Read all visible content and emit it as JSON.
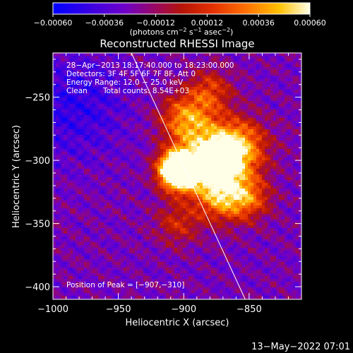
{
  "chart_data": {
    "type": "heatmap",
    "title": "Reconstructed RHESSI Image",
    "xlabel": "Heliocentric X (arcsec)",
    "ylabel": "Heliocentric Y (arcsec)",
    "xlim": [
      -1000,
      -810
    ],
    "ylim": [
      -410,
      -215
    ],
    "x_ticks": [
      -1000,
      -950,
      -900,
      -850
    ],
    "y_ticks": [
      -250,
      -300,
      -350,
      -400
    ],
    "x_tick_labels": [
      "−1000",
      "−950",
      "−900",
      "−850"
    ],
    "y_tick_labels": [
      "−250",
      "−300",
      "−350",
      "−400"
    ],
    "colorbar": {
      "min": -0.0006,
      "max": 0.0006,
      "ticks": [
        -0.0006,
        -0.00036,
        -0.00012,
        0.00012,
        0.00036,
        0.0006
      ],
      "tick_labels": [
        "−0.00060",
        "−0.00036",
        "−0.00012",
        "0.00012",
        "0.00036",
        "0.00060"
      ],
      "unit_prefix": "(photons cm",
      "unit_exp1": "−2",
      "unit_mid": " s",
      "unit_exp2": "−1",
      "unit_mid2": " asec",
      "unit_exp3": "−2",
      "unit_suffix": ")"
    },
    "annotations": {
      "time_range": "28−Apr−2013 18:17:40.000 to 18:23:00.000",
      "detectors": "Detectors: 3F 4F 5F 6F 7F 8F, Att 0",
      "energy_range": "Energy Range: 12.0 − 25.0 keV",
      "method_label": "Clean",
      "total_counts": "Total counts: 8.54E+03",
      "peak_position": "Position of Peak = [−907,−310]"
    },
    "peak": {
      "x": -907,
      "y": -310
    },
    "limb_line": [
      {
        "x": -940,
        "y": -215
      },
      {
        "x": -853,
        "y": -410
      }
    ],
    "sources": [
      {
        "x": -904,
        "y": -308,
        "sigma": 10,
        "amp": 1.35
      },
      {
        "x": -878,
        "y": -300,
        "sigma": 16,
        "amp": 0.6
      },
      {
        "x": -860,
        "y": -290,
        "sigma": 16,
        "amp": 0.55
      },
      {
        "x": -872,
        "y": -328,
        "sigma": 14,
        "amp": 0.5
      },
      {
        "x": -898,
        "y": -268,
        "sigma": 14,
        "amp": 0.5
      },
      {
        "x": -850,
        "y": -330,
        "sigma": 12,
        "amp": 0.35
      },
      {
        "x": -905,
        "y": -350,
        "sigma": 12,
        "amp": 0.25
      },
      {
        "x": -880,
        "y": -245,
        "sigma": 12,
        "amp": 0.3
      }
    ],
    "cold_region": {
      "x": -985,
      "y": -258,
      "sigma": 28,
      "amp": -0.9
    },
    "grid": false
  },
  "footer": {
    "timestamp": "13−May−2022 07:01"
  }
}
